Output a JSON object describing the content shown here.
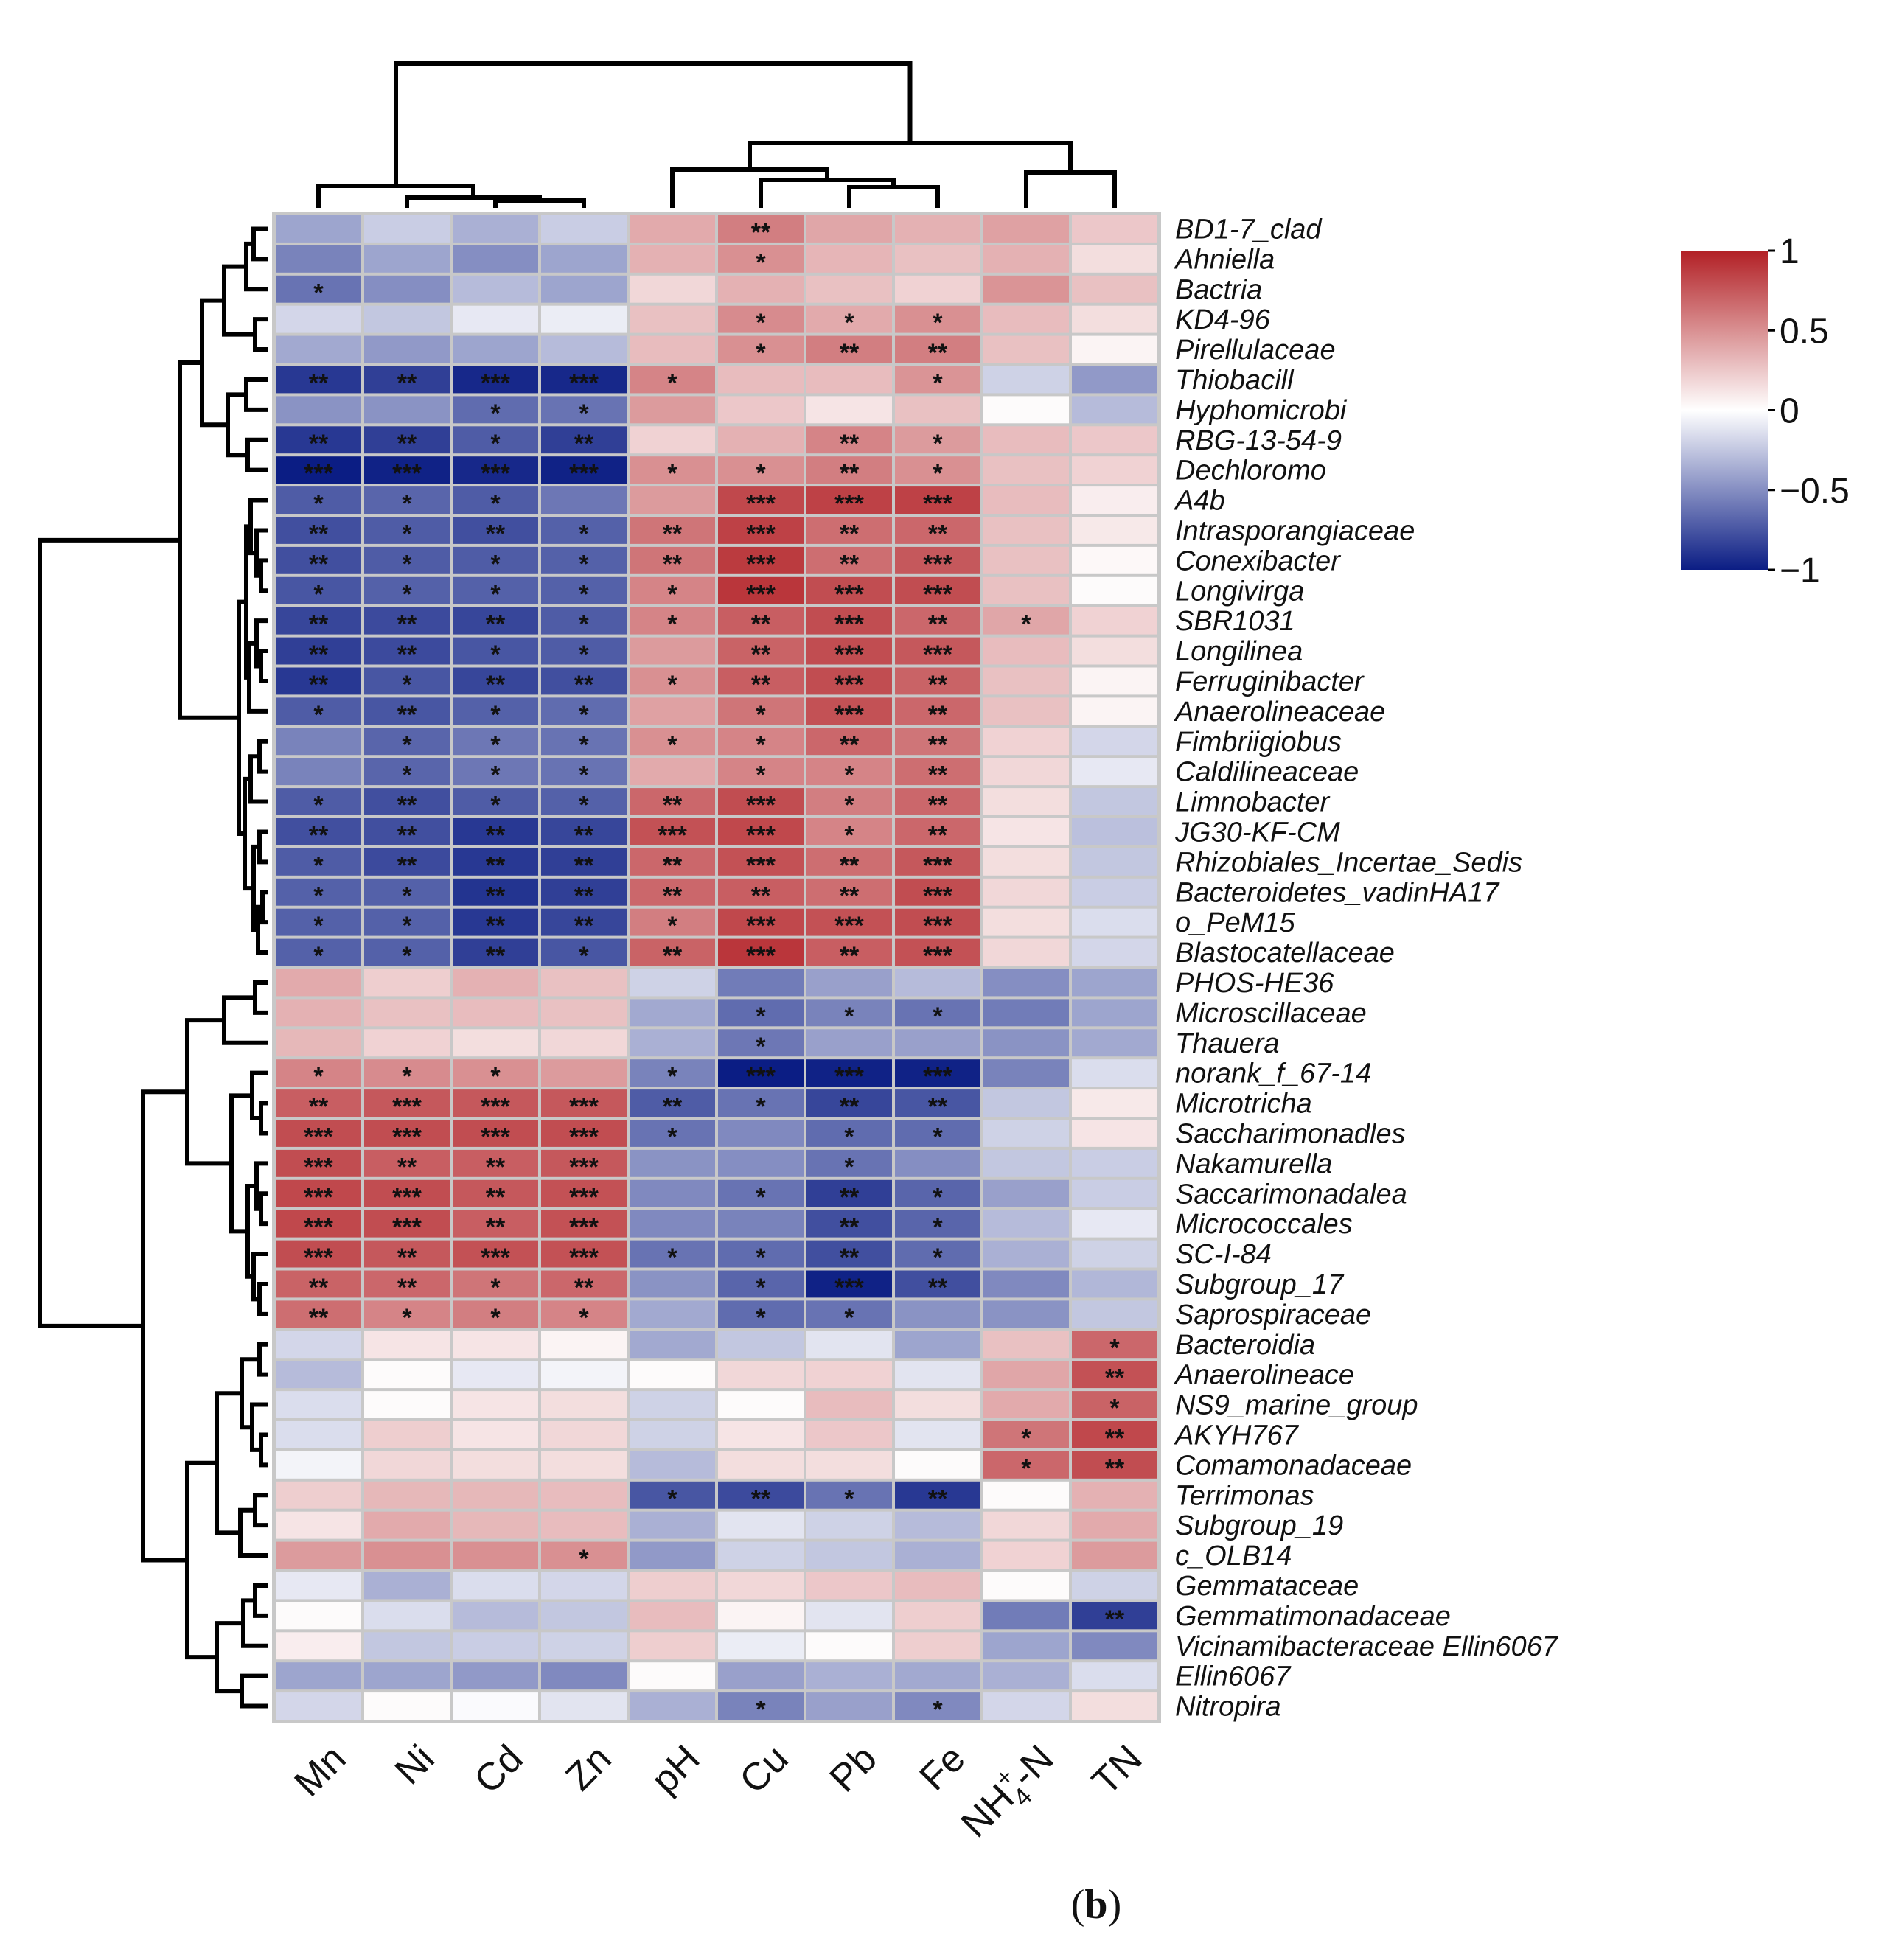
{
  "chart_data": {
    "type": "heatmap",
    "title": "",
    "caption_letter": "b",
    "colormap": {
      "low": "#0b1d84",
      "mid": "#ffffff",
      "high": "#b22025"
    },
    "legend": {
      "min": -1,
      "max": 1,
      "ticks": [
        {
          "value": 1,
          "label": "1"
        },
        {
          "value": 0.5,
          "label": "0.5"
        },
        {
          "value": 0,
          "label": "0"
        },
        {
          "value": -0.5,
          "label": "−0.5"
        },
        {
          "value": -1,
          "label": "−1"
        }
      ]
    },
    "columns": [
      "Mn",
      "Ni",
      "Cd",
      "Zn",
      "pH",
      "Cu",
      "Pb",
      "Fe",
      "NH4+-N",
      "TN"
    ],
    "column_labels": [
      {
        "main": "Mn"
      },
      {
        "main": "Ni"
      },
      {
        "main": "Cd"
      },
      {
        "main": "Zn"
      },
      {
        "main": "pH"
      },
      {
        "main": "Cu"
      },
      {
        "main": "Pb"
      },
      {
        "main": "Fe"
      },
      {
        "main": "NH",
        "sub": "4",
        "sup": "+",
        "tail": "-N"
      },
      {
        "main": "TN"
      }
    ],
    "rows": [
      "BD1-7_clad",
      "Ahniella",
      "Bactria",
      "KD4-96",
      "Pirellulaceae",
      "Thiobacill",
      "Hyphomicrobi",
      "RBG-13-54-9",
      "Dechloromo",
      "A4b",
      "Intrasporangiaceae",
      "Conexibacter",
      "Longivirga",
      "SBR1031",
      "Longilinea",
      "Ferruginibacter",
      "Anaerolineaceae",
      "Fimbriigiobus",
      "Caldilineaceae",
      "Limnobacter",
      "JG30-KF-CM",
      "Rhizobiales_Incertae_Sedis",
      "Bacteroidetes_vadinHA17",
      "o_PeM15",
      "Blastocatellaceae",
      "PHOS-HE36",
      "Microscillaceae",
      "Thauera",
      "norank_f_67-14",
      "Microtricha",
      "Saccharimonadles",
      "Nakamurella",
      "Saccarimonadalea",
      "Micrococcales",
      "SC-I-84",
      "Subgroup_17",
      "Saprospiraceae",
      "Bacteroidia",
      "Anaerolineace",
      "NS9_marine_group",
      "AKYH767",
      "Comamonadaceae",
      "Terrimonas",
      "Subgroup_19",
      "c_OLB14",
      "Gemmataceae",
      "Gemmatimonadaceae",
      "Vicinamibacteraceae Ellin6067",
      "Ellin6067",
      "Nitropira"
    ],
    "values": [
      [
        -0.4,
        -0.22,
        -0.35,
        -0.22,
        0.38,
        0.58,
        0.4,
        0.35,
        0.42,
        0.25
      ],
      [
        -0.55,
        -0.4,
        -0.5,
        -0.4,
        0.35,
        0.5,
        0.33,
        0.28,
        0.35,
        0.15
      ],
      [
        -0.62,
        -0.5,
        -0.3,
        -0.4,
        0.18,
        0.35,
        0.28,
        0.2,
        0.48,
        0.28
      ],
      [
        -0.18,
        -0.25,
        -0.1,
        -0.08,
        0.28,
        0.52,
        0.38,
        0.5,
        0.3,
        0.15
      ],
      [
        -0.38,
        -0.45,
        -0.4,
        -0.3,
        0.3,
        0.5,
        0.58,
        0.58,
        0.28,
        0.05
      ],
      [
        -0.88,
        -0.85,
        -0.95,
        -0.95,
        0.55,
        0.3,
        0.3,
        0.48,
        -0.2,
        -0.45
      ],
      [
        -0.48,
        -0.48,
        -0.65,
        -0.62,
        0.45,
        0.25,
        0.12,
        0.28,
        0.02,
        -0.3
      ],
      [
        -0.88,
        -0.85,
        -0.72,
        -0.85,
        0.2,
        0.35,
        0.55,
        0.45,
        0.3,
        0.25
      ],
      [
        -1.0,
        -0.98,
        -0.95,
        -0.98,
        0.5,
        0.5,
        0.58,
        0.5,
        0.28,
        0.2
      ],
      [
        -0.72,
        -0.68,
        -0.72,
        -0.6,
        0.45,
        0.82,
        0.85,
        0.85,
        0.3,
        0.08
      ],
      [
        -0.78,
        -0.72,
        -0.78,
        -0.7,
        0.62,
        0.85,
        0.65,
        0.68,
        0.28,
        0.1
      ],
      [
        -0.78,
        -0.72,
        -0.72,
        -0.7,
        0.62,
        0.88,
        0.65,
        0.75,
        0.28,
        0.03
      ],
      [
        -0.75,
        -0.7,
        -0.7,
        -0.7,
        0.55,
        0.9,
        0.8,
        0.8,
        0.28,
        0.02
      ],
      [
        -0.82,
        -0.8,
        -0.82,
        -0.72,
        0.55,
        0.72,
        0.8,
        0.68,
        0.4,
        0.2
      ],
      [
        -0.85,
        -0.8,
        -0.75,
        -0.72,
        0.45,
        0.7,
        0.8,
        0.75,
        0.3,
        0.15
      ],
      [
        -0.88,
        -0.75,
        -0.82,
        -0.78,
        0.5,
        0.72,
        0.8,
        0.7,
        0.28,
        0.05
      ],
      [
        -0.72,
        -0.75,
        -0.7,
        -0.65,
        0.42,
        0.62,
        0.78,
        0.68,
        0.28,
        0.05
      ],
      [
        -0.55,
        -0.68,
        -0.6,
        -0.62,
        0.5,
        0.55,
        0.68,
        0.62,
        0.2,
        -0.18
      ],
      [
        -0.55,
        -0.68,
        -0.6,
        -0.62,
        0.38,
        0.55,
        0.55,
        0.65,
        0.18,
        -0.1
      ],
      [
        -0.72,
        -0.78,
        -0.72,
        -0.7,
        0.68,
        0.8,
        0.58,
        0.68,
        0.15,
        -0.25
      ],
      [
        -0.78,
        -0.78,
        -0.88,
        -0.82,
        0.78,
        0.82,
        0.55,
        0.68,
        0.12,
        -0.28
      ],
      [
        -0.72,
        -0.8,
        -0.88,
        -0.85,
        0.68,
        0.78,
        0.65,
        0.75,
        0.15,
        -0.25
      ],
      [
        -0.7,
        -0.7,
        -0.9,
        -0.85,
        0.68,
        0.72,
        0.65,
        0.8,
        0.18,
        -0.22
      ],
      [
        -0.7,
        -0.7,
        -0.88,
        -0.82,
        0.58,
        0.82,
        0.78,
        0.8,
        0.15,
        -0.15
      ],
      [
        -0.7,
        -0.7,
        -0.85,
        -0.75,
        0.7,
        0.9,
        0.72,
        0.78,
        0.18,
        -0.18
      ],
      [
        0.38,
        0.22,
        0.35,
        0.28,
        -0.2,
        -0.58,
        -0.42,
        -0.3,
        -0.5,
        -0.4
      ],
      [
        0.35,
        0.28,
        0.3,
        0.28,
        -0.38,
        -0.65,
        -0.55,
        -0.62,
        -0.58,
        -0.4
      ],
      [
        0.32,
        0.2,
        0.15,
        0.18,
        -0.35,
        -0.6,
        -0.42,
        -0.42,
        -0.48,
        -0.38
      ],
      [
        0.55,
        0.52,
        0.5,
        0.45,
        -0.55,
        -1.0,
        -0.98,
        -0.98,
        -0.55,
        -0.15
      ],
      [
        0.72,
        0.75,
        0.75,
        0.75,
        -0.72,
        -0.62,
        -0.82,
        -0.75,
        -0.25,
        0.1
      ],
      [
        0.8,
        0.8,
        0.8,
        0.8,
        -0.62,
        -0.52,
        -0.65,
        -0.65,
        -0.2,
        0.12
      ],
      [
        0.8,
        0.72,
        0.72,
        0.75,
        -0.48,
        -0.5,
        -0.62,
        -0.5,
        -0.25,
        -0.22
      ],
      [
        0.82,
        0.8,
        0.75,
        0.78,
        -0.52,
        -0.62,
        -0.85,
        -0.68,
        -0.42,
        -0.22
      ],
      [
        0.82,
        0.8,
        0.72,
        0.78,
        -0.52,
        -0.55,
        -0.78,
        -0.68,
        -0.3,
        -0.1
      ],
      [
        0.8,
        0.75,
        0.78,
        0.78,
        -0.62,
        -0.65,
        -0.78,
        -0.65,
        -0.35,
        -0.2
      ],
      [
        0.7,
        0.68,
        0.62,
        0.68,
        -0.48,
        -0.68,
        -0.98,
        -0.78,
        -0.52,
        -0.32
      ],
      [
        0.65,
        0.55,
        0.58,
        0.55,
        -0.38,
        -0.65,
        -0.62,
        -0.48,
        -0.48,
        -0.25
      ],
      [
        -0.18,
        0.12,
        0.12,
        0.05,
        -0.38,
        -0.25,
        -0.12,
        -0.4,
        0.28,
        0.68
      ],
      [
        -0.3,
        0.02,
        -0.1,
        -0.05,
        0.02,
        0.18,
        0.2,
        -0.12,
        0.4,
        0.78
      ],
      [
        -0.15,
        0.02,
        0.12,
        0.15,
        -0.2,
        0.02,
        0.3,
        0.15,
        0.38,
        0.7
      ],
      [
        -0.15,
        0.22,
        0.12,
        0.18,
        -0.2,
        0.12,
        0.25,
        -0.12,
        0.62,
        0.82
      ],
      [
        -0.05,
        0.18,
        0.15,
        0.15,
        -0.3,
        0.15,
        0.15,
        0.02,
        0.68,
        0.8
      ],
      [
        0.22,
        0.32,
        0.32,
        0.3,
        -0.75,
        -0.8,
        -0.62,
        -0.88,
        0.02,
        0.35
      ],
      [
        0.12,
        0.38,
        0.32,
        0.3,
        -0.35,
        -0.12,
        -0.2,
        -0.3,
        0.18,
        0.38
      ],
      [
        0.45,
        0.5,
        0.5,
        0.5,
        -0.45,
        -0.2,
        -0.25,
        -0.35,
        0.2,
        0.45
      ],
      [
        -0.1,
        -0.35,
        -0.15,
        -0.18,
        0.22,
        0.18,
        0.25,
        0.3,
        0.02,
        -0.2
      ],
      [
        0.02,
        -0.15,
        -0.3,
        -0.25,
        0.3,
        0.05,
        -0.12,
        0.22,
        -0.58,
        -0.85
      ],
      [
        0.08,
        -0.25,
        -0.22,
        -0.2,
        0.22,
        -0.08,
        0.02,
        0.22,
        -0.4,
        -0.52
      ],
      [
        -0.4,
        -0.4,
        -0.45,
        -0.52,
        0.02,
        -0.42,
        -0.35,
        -0.38,
        -0.35,
        -0.15
      ],
      [
        -0.18,
        0.02,
        -0.02,
        -0.12,
        -0.35,
        -0.55,
        -0.42,
        -0.52,
        -0.18,
        0.15
      ]
    ],
    "significance": [
      [
        "",
        "",
        "",
        "",
        "",
        "**",
        "",
        "",
        "",
        ""
      ],
      [
        "",
        "",
        "",
        "",
        "",
        "*",
        "",
        "",
        "",
        ""
      ],
      [
        "*",
        "",
        "",
        "",
        "",
        "",
        "",
        "",
        "",
        ""
      ],
      [
        "",
        "",
        "",
        "",
        "",
        "*",
        "*",
        "*",
        "",
        ""
      ],
      [
        "",
        "",
        "",
        "",
        "",
        "*",
        "**",
        "**",
        "",
        ""
      ],
      [
        "**",
        "**",
        "***",
        "***",
        "*",
        "",
        "",
        "*",
        "",
        ""
      ],
      [
        "",
        "",
        "*",
        "*",
        "",
        "",
        "",
        "",
        "",
        ""
      ],
      [
        "**",
        "**",
        "*",
        "**",
        "",
        "",
        "**",
        "*",
        "",
        ""
      ],
      [
        "***",
        "***",
        "***",
        "***",
        "*",
        "*",
        "**",
        "*",
        "",
        ""
      ],
      [
        "*",
        "*",
        "*",
        "",
        "",
        "***",
        "***",
        "***",
        "",
        ""
      ],
      [
        "**",
        "*",
        "**",
        "*",
        "**",
        "***",
        "**",
        "**",
        "",
        ""
      ],
      [
        "**",
        "*",
        "*",
        "*",
        "**",
        "***",
        "**",
        "***",
        "",
        ""
      ],
      [
        "*",
        "*",
        "*",
        "*",
        "*",
        "***",
        "***",
        "***",
        "",
        ""
      ],
      [
        "**",
        "**",
        "**",
        "*",
        "*",
        "**",
        "***",
        "**",
        "*",
        ""
      ],
      [
        "**",
        "**",
        "*",
        "*",
        "",
        "**",
        "***",
        "***",
        "",
        ""
      ],
      [
        "**",
        "*",
        "**",
        "**",
        "*",
        "**",
        "***",
        "**",
        "",
        ""
      ],
      [
        "*",
        "**",
        "*",
        "*",
        "",
        "*",
        "***",
        "**",
        "",
        ""
      ],
      [
        "",
        "*",
        "*",
        "*",
        "*",
        "*",
        "**",
        "**",
        "",
        ""
      ],
      [
        "",
        "*",
        "*",
        "*",
        "",
        "*",
        "*",
        "**",
        "",
        ""
      ],
      [
        "*",
        "**",
        "*",
        "*",
        "**",
        "***",
        "*",
        "**",
        "",
        ""
      ],
      [
        "**",
        "**",
        "**",
        "**",
        "***",
        "***",
        "*",
        "**",
        "",
        ""
      ],
      [
        "*",
        "**",
        "**",
        "**",
        "**",
        "***",
        "**",
        "***",
        "",
        ""
      ],
      [
        "*",
        "*",
        "**",
        "**",
        "**",
        "**",
        "**",
        "***",
        "",
        ""
      ],
      [
        "*",
        "*",
        "**",
        "**",
        "*",
        "***",
        "***",
        "***",
        "",
        ""
      ],
      [
        "*",
        "*",
        "**",
        "*",
        "**",
        "***",
        "**",
        "***",
        "",
        ""
      ],
      [
        "",
        "",
        "",
        "",
        "",
        "",
        "",
        "",
        "",
        ""
      ],
      [
        "",
        "",
        "",
        "",
        "",
        "*",
        "*",
        "*",
        "",
        ""
      ],
      [
        "",
        "",
        "",
        "",
        "",
        "*",
        "",
        "",
        "",
        ""
      ],
      [
        "*",
        "*",
        "*",
        "",
        "*",
        "***",
        "***",
        "***",
        "",
        ""
      ],
      [
        "**",
        "***",
        "***",
        "***",
        "**",
        "*",
        "**",
        "**",
        "",
        ""
      ],
      [
        "***",
        "***",
        "***",
        "***",
        "*",
        "",
        "*",
        "*",
        "",
        ""
      ],
      [
        "***",
        "**",
        "**",
        "***",
        "",
        "",
        "*",
        "",
        "",
        ""
      ],
      [
        "***",
        "***",
        "**",
        "***",
        "",
        "*",
        "**",
        "*",
        "",
        ""
      ],
      [
        "***",
        "***",
        "**",
        "***",
        "",
        "",
        "**",
        "*",
        "",
        ""
      ],
      [
        "***",
        "**",
        "***",
        "***",
        "*",
        "*",
        "**",
        "*",
        "",
        ""
      ],
      [
        "**",
        "**",
        "*",
        "**",
        "",
        "*",
        "***",
        "**",
        "",
        ""
      ],
      [
        "**",
        "*",
        "*",
        "*",
        "",
        "*",
        "*",
        "",
        "",
        ""
      ],
      [
        "",
        "",
        "",
        "",
        "",
        "",
        "",
        "",
        "",
        "*"
      ],
      [
        "",
        "",
        "",
        "",
        "",
        "",
        "",
        "",
        "",
        "**"
      ],
      [
        "",
        "",
        "",
        "",
        "",
        "",
        "",
        "",
        "",
        "*"
      ],
      [
        "",
        "",
        "",
        "",
        "",
        "",
        "",
        "",
        "*",
        "**"
      ],
      [
        "",
        "",
        "",
        "",
        "",
        "",
        "",
        "",
        "*",
        "**"
      ],
      [
        "",
        "",
        "",
        "",
        "*",
        "**",
        "*",
        "**",
        "",
        ""
      ],
      [
        "",
        "",
        "",
        "",
        "",
        "",
        "",
        "",
        "",
        ""
      ],
      [
        "",
        "",
        "",
        "*",
        "",
        "",
        "",
        "",
        "",
        ""
      ],
      [
        "",
        "",
        "",
        "",
        "",
        "",
        "",
        "",
        "",
        ""
      ],
      [
        "",
        "",
        "",
        "",
        "",
        "",
        "",
        "",
        "",
        "**"
      ],
      [
        "",
        "",
        "",
        "",
        "",
        "",
        "",
        "",
        "",
        ""
      ],
      [
        "",
        "",
        "",
        "",
        "",
        "",
        "",
        "",
        "",
        ""
      ],
      [
        "",
        "",
        "",
        "",
        "",
        "*",
        "",
        "*",
        "",
        ""
      ]
    ]
  }
}
